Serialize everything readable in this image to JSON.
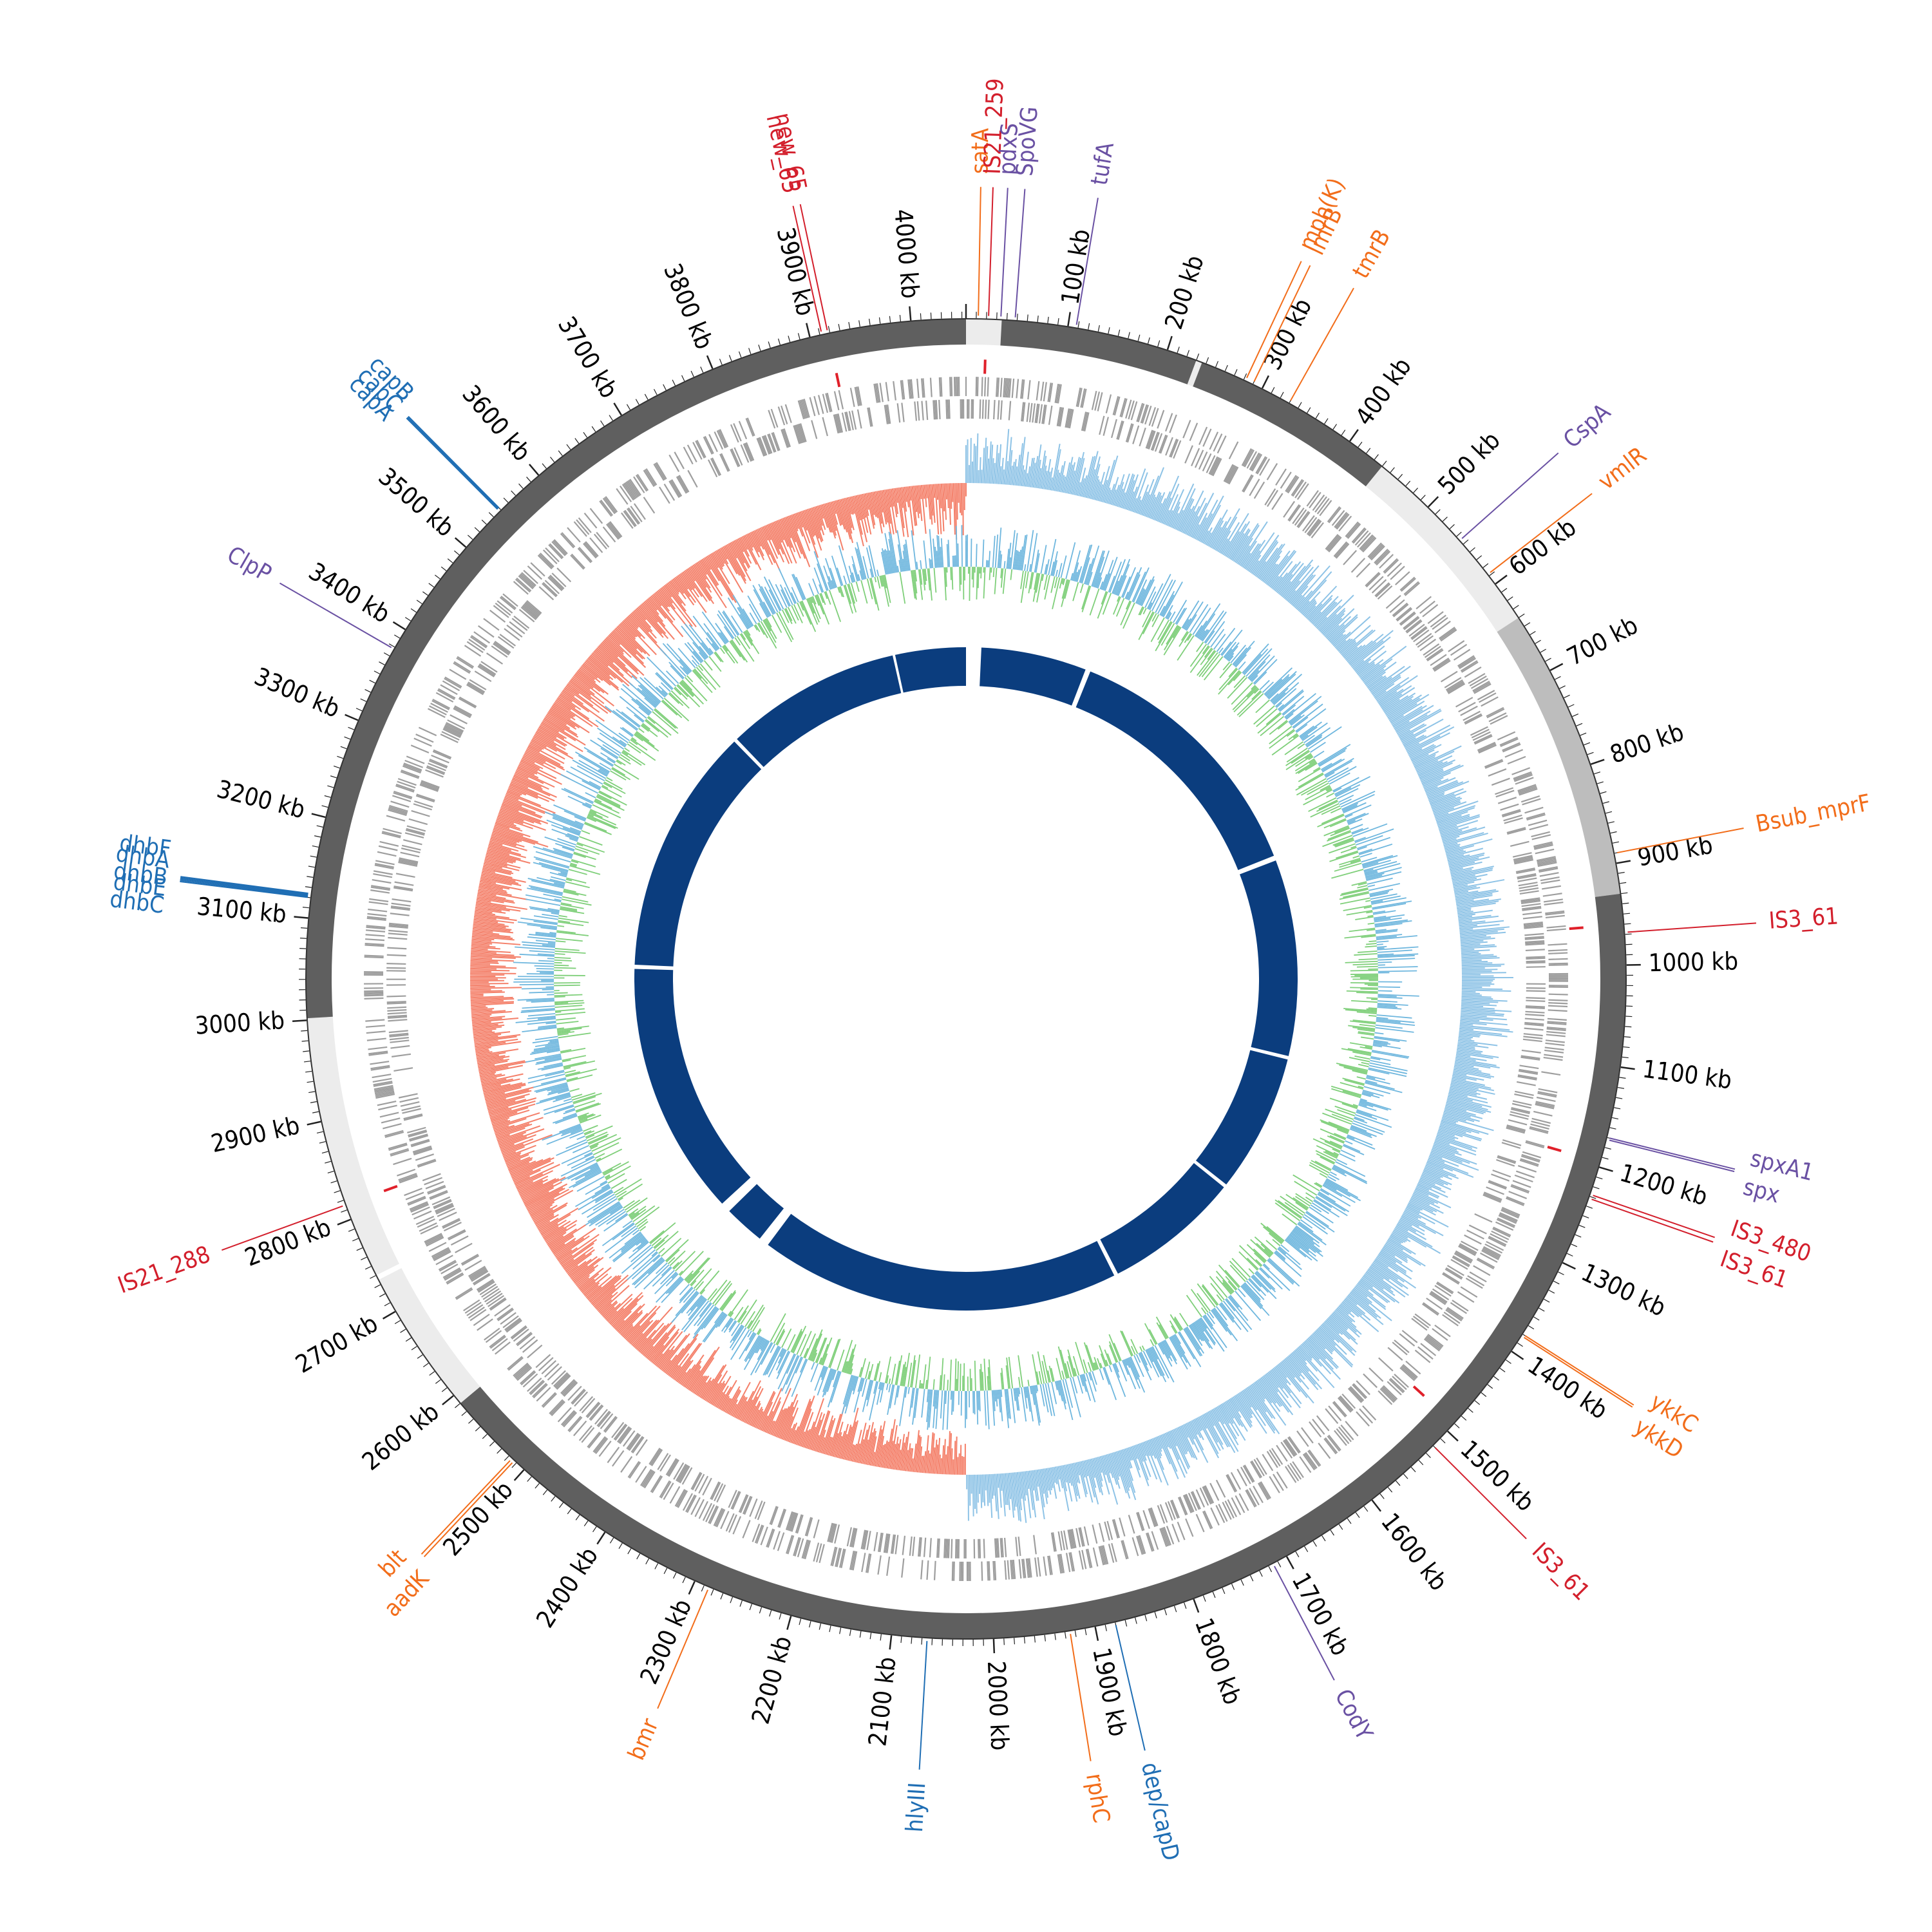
{
  "genome": {
    "length_kb": 4054
  },
  "colors": {
    "backbone_dark": "#5f5f5f",
    "backbone_light": "#ececec",
    "backbone_mid": "#bdbdbd",
    "cds": "#9e9e9e",
    "insertion_mark": "#e0202a",
    "gc_skew_positive": "#8ec3e6",
    "gc_skew_negative": "#f4806a",
    "gc_content_high": "#6fb7de",
    "gc_content_low": "#7fcf7a",
    "synteny": "#0b3d7e",
    "label_is": "#d31f2c",
    "label_resistance": "#f26d1a",
    "label_regulator": "#6a51a3",
    "label_virulence": "#1f6eb4"
  },
  "tick_labels": [
    {
      "kb": 100,
      "text": "100 kb"
    },
    {
      "kb": 200,
      "text": "200 kb"
    },
    {
      "kb": 300,
      "text": "300 kb"
    },
    {
      "kb": 400,
      "text": "400 kb"
    },
    {
      "kb": 500,
      "text": "500 kb"
    },
    {
      "kb": 600,
      "text": "600 kb"
    },
    {
      "kb": 700,
      "text": "700 kb"
    },
    {
      "kb": 800,
      "text": "800 kb"
    },
    {
      "kb": 900,
      "text": "900 kb"
    },
    {
      "kb": 1000,
      "text": "1000 kb"
    },
    {
      "kb": 1100,
      "text": "1100 kb"
    },
    {
      "kb": 1200,
      "text": "1200 kb"
    },
    {
      "kb": 1300,
      "text": "1300 kb"
    },
    {
      "kb": 1400,
      "text": "1400 kb"
    },
    {
      "kb": 1500,
      "text": "1500 kb"
    },
    {
      "kb": 1600,
      "text": "1600 kb"
    },
    {
      "kb": 1700,
      "text": "1700 kb"
    },
    {
      "kb": 1800,
      "text": "1800 kb"
    },
    {
      "kb": 1900,
      "text": "1900 kb"
    },
    {
      "kb": 2000,
      "text": "2000 kb"
    },
    {
      "kb": 2100,
      "text": "2100 kb"
    },
    {
      "kb": 2200,
      "text": "2200 kb"
    },
    {
      "kb": 2300,
      "text": "2300 kb"
    },
    {
      "kb": 2400,
      "text": "2400 kb"
    },
    {
      "kb": 2500,
      "text": "2500 kb"
    },
    {
      "kb": 2600,
      "text": "2600 kb"
    },
    {
      "kb": 2700,
      "text": "2700 kb"
    },
    {
      "kb": 2800,
      "text": "2800 kb"
    },
    {
      "kb": 2900,
      "text": "2900 kb"
    },
    {
      "kb": 3000,
      "text": "3000 kb"
    },
    {
      "kb": 3100,
      "text": "3100 kb"
    },
    {
      "kb": 3200,
      "text": "3200 kb"
    },
    {
      "kb": 3300,
      "text": "3300 kb"
    },
    {
      "kb": 3400,
      "text": "3400 kb"
    },
    {
      "kb": 3500,
      "text": "3500 kb"
    },
    {
      "kb": 3600,
      "text": "3600 kb"
    },
    {
      "kb": 3700,
      "text": "3700 kb"
    },
    {
      "kb": 3800,
      "text": "3800 kb"
    },
    {
      "kb": 3900,
      "text": "3900 kb"
    },
    {
      "kb": 4000,
      "text": "4000 kb"
    }
  ],
  "backbone_segments": [
    {
      "start": 0,
      "end": 35,
      "shade": "light"
    },
    {
      "start": 35,
      "end": 230,
      "shade": "dark"
    },
    {
      "start": 230,
      "end": 236,
      "shade": "light"
    },
    {
      "start": 236,
      "end": 440,
      "shade": "dark"
    },
    {
      "start": 440,
      "end": 640,
      "shade": "light"
    },
    {
      "start": 640,
      "end": 930,
      "shade": "mid"
    },
    {
      "start": 930,
      "end": 2590,
      "shade": "dark"
    },
    {
      "start": 2590,
      "end": 2735,
      "shade": "light"
    },
    {
      "start": 2740,
      "end": 3002,
      "shade": "light"
    },
    {
      "start": 3002,
      "end": 4054,
      "shade": "dark"
    }
  ],
  "synteny_segments": [
    {
      "start": 30,
      "end": 238
    },
    {
      "start": 248,
      "end": 768
    },
    {
      "start": 778,
      "end": 1165
    },
    {
      "start": 1172,
      "end": 1445
    },
    {
      "start": 1452,
      "end": 1720
    },
    {
      "start": 1728,
      "end": 2440
    },
    {
      "start": 2460,
      "end": 2540
    },
    {
      "start": 2560,
      "end": 3060
    },
    {
      "start": 3068,
      "end": 3555
    },
    {
      "start": 3562,
      "end": 3910
    },
    {
      "start": 3915,
      "end": 4054
    }
  ],
  "insertion_marks": [
    {
      "kb": 20
    },
    {
      "kb": 960
    },
    {
      "kb": 1195
    },
    {
      "kb": 1490
    },
    {
      "kb": 2815
    },
    {
      "kb": 3918
    }
  ],
  "gene_labels": [
    {
      "kb": 22,
      "label": "IS21_259",
      "category": "is"
    },
    {
      "kb": 12,
      "label": "satA",
      "category": "resistance"
    },
    {
      "kb": 34,
      "label": "pdxS",
      "category": "regulator"
    },
    {
      "kb": 48,
      "label": "SpoVG",
      "category": "regulator"
    },
    {
      "kb": 108,
      "label": "tufA",
      "category": "regulator"
    },
    {
      "kb": 3912,
      "label": "new_65",
      "category": "is"
    },
    {
      "kb": 3918,
      "label": "new_65",
      "category": "is"
    },
    {
      "kb": 282,
      "label": "mph(K)",
      "category": "resistance"
    },
    {
      "kb": 290,
      "label": "lmrB",
      "category": "resistance"
    },
    {
      "kb": 330,
      "label": "tmrB",
      "category": "resistance"
    },
    {
      "kb": 545,
      "label": "CspA",
      "category": "regulator"
    },
    {
      "kb": 588,
      "label": "vmlR",
      "category": "resistance"
    },
    {
      "kb": 890,
      "label": "Bsub_mprF",
      "category": "resistance"
    },
    {
      "kb": 968,
      "label": "IS3_61",
      "category": "is"
    },
    {
      "kb": 1170,
      "label": "spxA1",
      "category": "regulator"
    },
    {
      "kb": 1172,
      "label": "spx",
      "category": "regulator"
    },
    {
      "kb": 1228,
      "label": "IS3_480",
      "category": "is"
    },
    {
      "kb": 1232,
      "label": "IS3_61",
      "category": "is"
    },
    {
      "kb": 1380,
      "label": "ykkC",
      "category": "resistance"
    },
    {
      "kb": 1382,
      "label": "ykkD",
      "category": "resistance"
    },
    {
      "kb": 1520,
      "label": "IS3_61",
      "category": "is"
    },
    {
      "kb": 1715,
      "label": "CodY",
      "category": "regulator"
    },
    {
      "kb": 1880,
      "label": "dep/capD",
      "category": "virulence"
    },
    {
      "kb": 1925,
      "label": "rphC",
      "category": "resistance"
    },
    {
      "kb": 2065,
      "label": "hlyIII",
      "category": "virulence"
    },
    {
      "kb": 2285,
      "label": "bmr",
      "category": "resistance"
    },
    {
      "kb": 2513,
      "label": "aadK",
      "category": "resistance"
    },
    {
      "kb": 2516,
      "label": "blt",
      "category": "resistance"
    },
    {
      "kb": 2815,
      "label": "IS21_288",
      "category": "is"
    },
    {
      "kb": 3120,
      "label": "dhbC",
      "category": "virulence"
    },
    {
      "kb": 3121,
      "label": "dhbB",
      "category": "virulence"
    },
    {
      "kb": 3122,
      "label": "dhbF",
      "category": "virulence"
    },
    {
      "kb": 3123,
      "label": "dhbE",
      "category": "virulence"
    },
    {
      "kb": 3124,
      "label": "dhbA",
      "category": "virulence"
    },
    {
      "kb": 3378,
      "label": "ClpP",
      "category": "regulator"
    },
    {
      "kb": 3548,
      "label": "capC",
      "category": "virulence"
    },
    {
      "kb": 3549,
      "label": "capA",
      "category": "virulence"
    },
    {
      "kb": 3550,
      "label": "capB",
      "category": "virulence"
    }
  ]
}
